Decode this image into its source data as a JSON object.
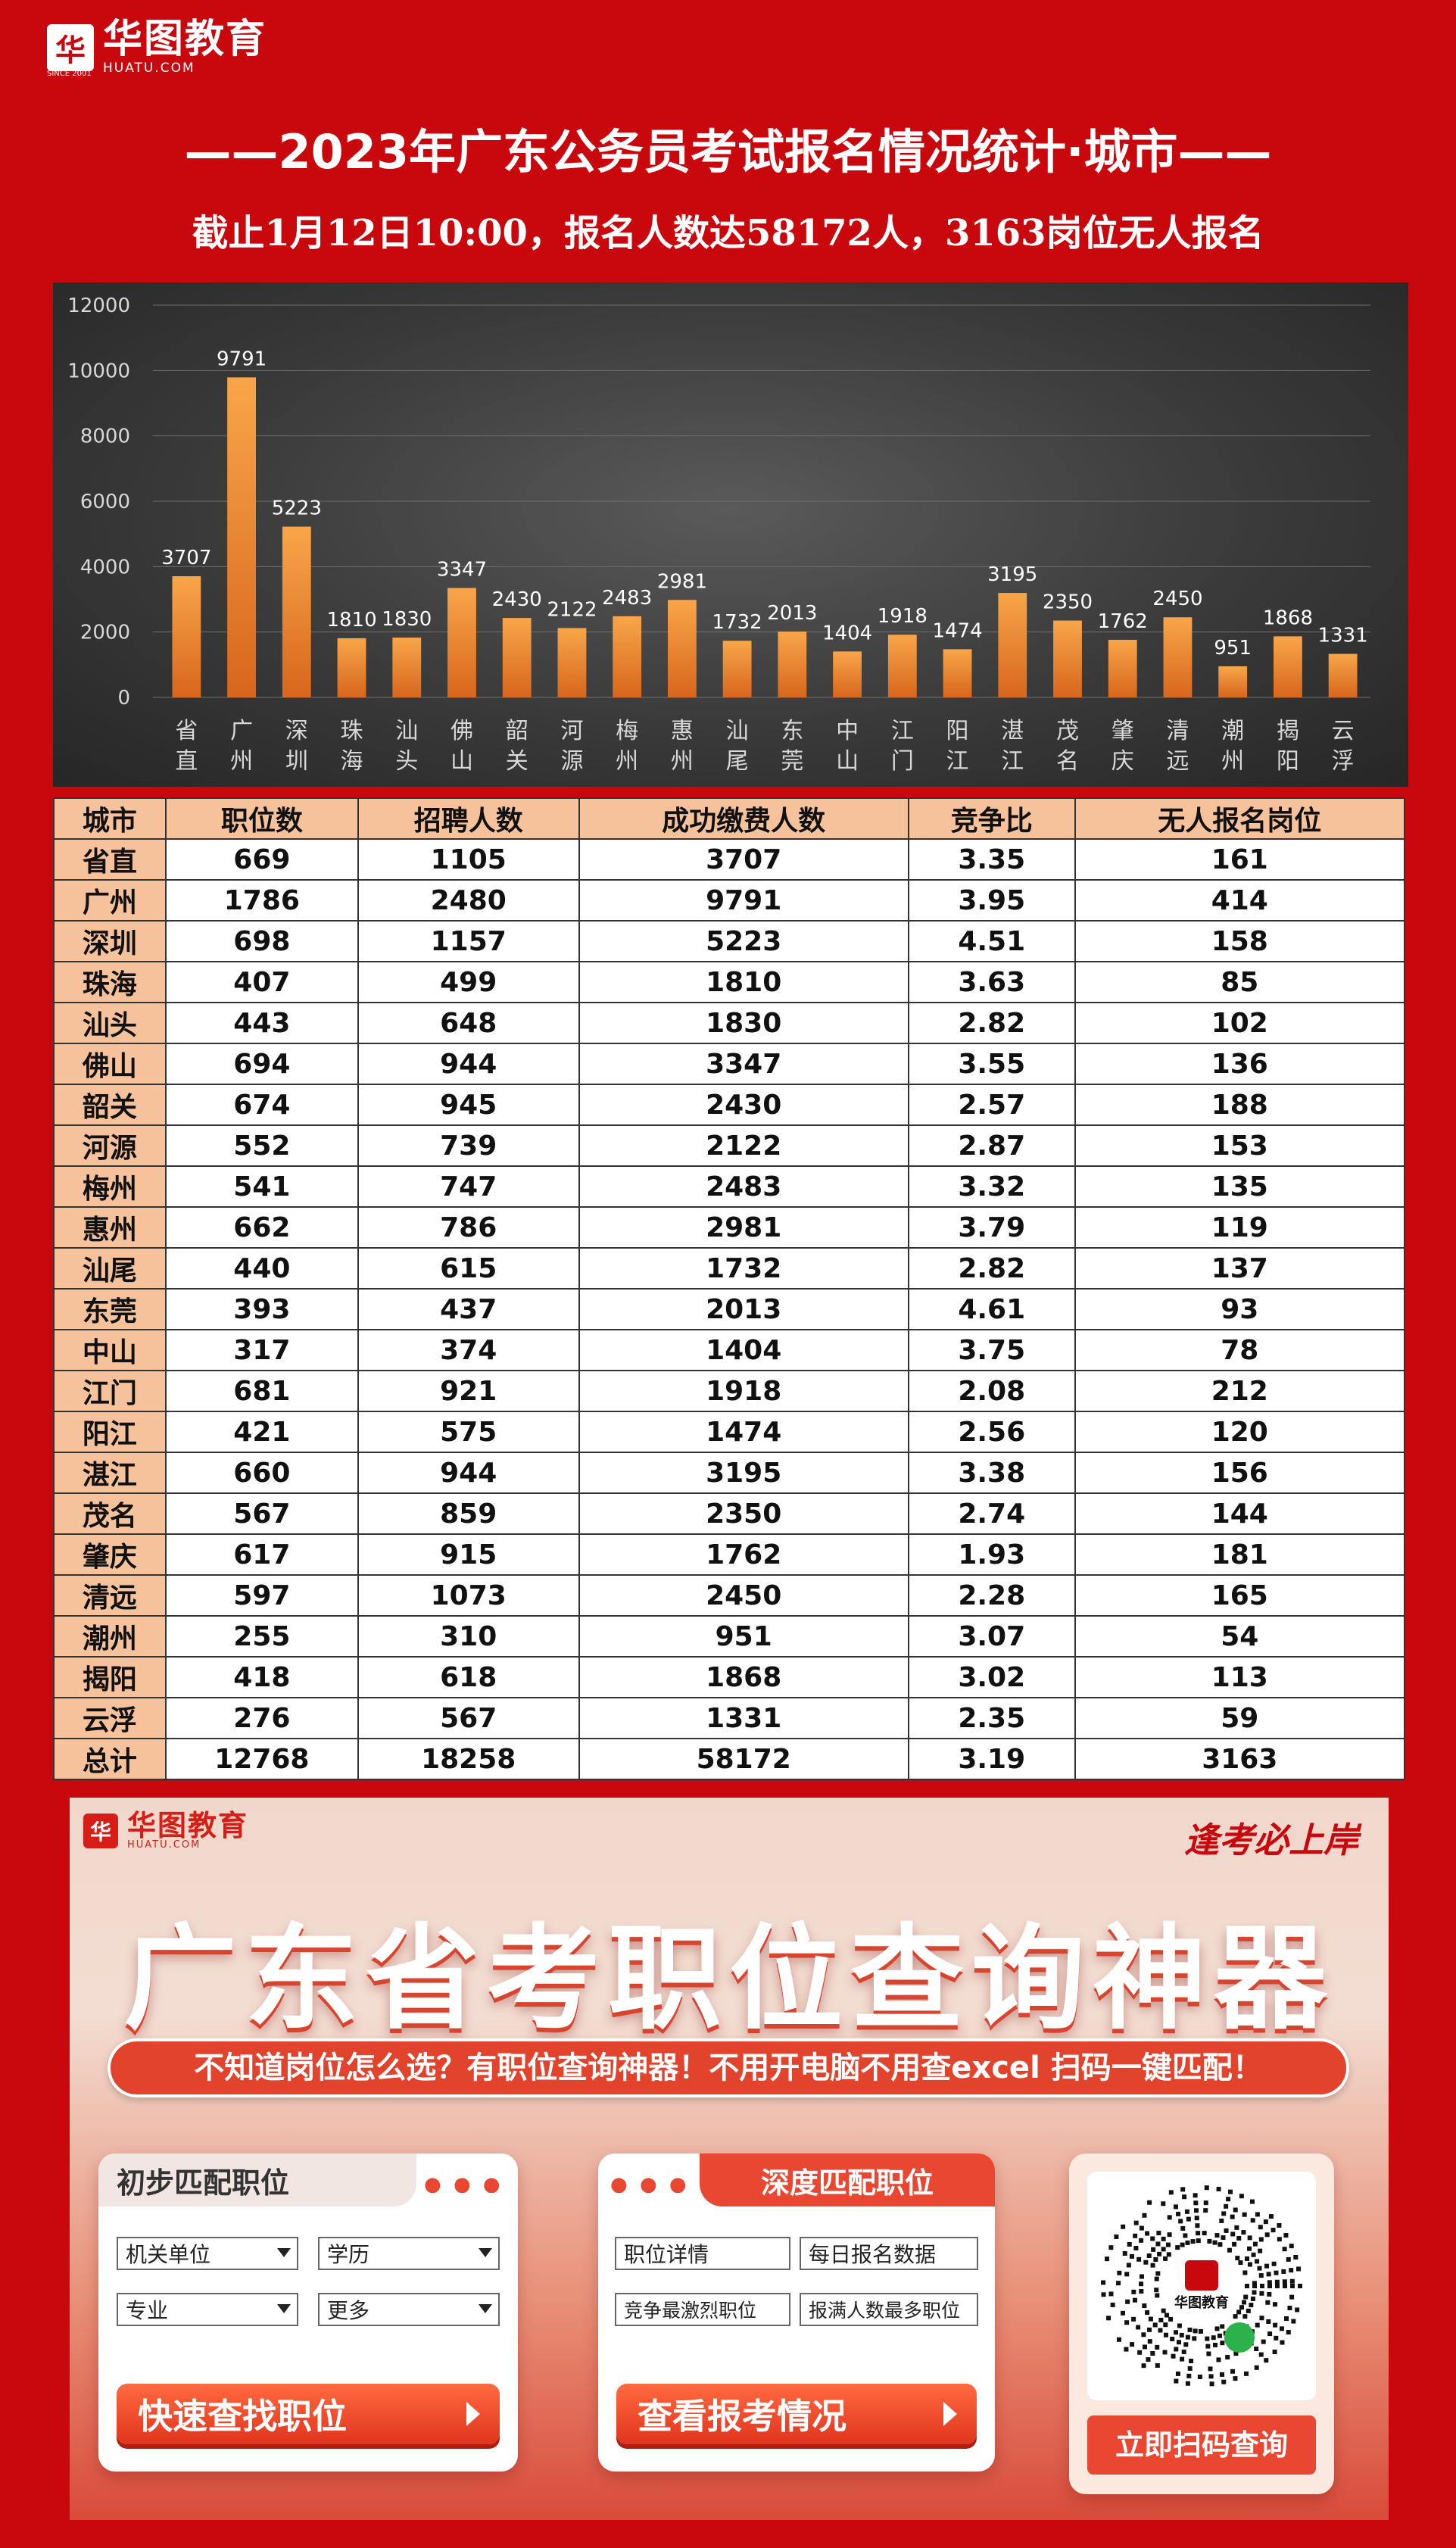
{
  "brand": {
    "mark": "华",
    "name_cn": "华图教育",
    "name_en": "HUATU.COM",
    "since": "SINCE 2001"
  },
  "header": {
    "title": "——2023年广东公务员考试报名情况统计·城市——",
    "subtitle": "截止1月12日10:00，报名人数达58172人，3163岗位无人报名"
  },
  "chart_data": {
    "type": "bar",
    "categories": [
      "省直",
      "广州",
      "深圳",
      "珠海",
      "汕头",
      "佛山",
      "韶关",
      "河源",
      "梅州",
      "惠州",
      "汕尾",
      "东莞",
      "中山",
      "江门",
      "阳江",
      "湛江",
      "茂名",
      "肇庆",
      "清远",
      "潮州",
      "揭阳",
      "云浮"
    ],
    "values": [
      3707,
      9791,
      5223,
      1810,
      1830,
      3347,
      2430,
      2122,
      2483,
      2981,
      1732,
      2013,
      1404,
      1918,
      1474,
      3195,
      2350,
      1762,
      2450,
      951,
      1868,
      1331
    ],
    "ylim": [
      0,
      12000
    ],
    "yticks": [
      0,
      2000,
      4000,
      6000,
      8000,
      10000,
      12000
    ],
    "grid": true,
    "colors": {
      "bar_top": "#f8a64a",
      "bar_bottom": "#d8661c",
      "label": "#ffffff",
      "grid": "#707070"
    }
  },
  "table": {
    "headers": [
      "城市",
      "职位数",
      "招聘人数",
      "成功缴费人数",
      "竞争比",
      "无人报名岗位"
    ],
    "rows": [
      [
        "省直",
        "669",
        "1105",
        "3707",
        "3.35",
        "161"
      ],
      [
        "广州",
        "1786",
        "2480",
        "9791",
        "3.95",
        "414"
      ],
      [
        "深圳",
        "698",
        "1157",
        "5223",
        "4.51",
        "158"
      ],
      [
        "珠海",
        "407",
        "499",
        "1810",
        "3.63",
        "85"
      ],
      [
        "汕头",
        "443",
        "648",
        "1830",
        "2.82",
        "102"
      ],
      [
        "佛山",
        "694",
        "944",
        "3347",
        "3.55",
        "136"
      ],
      [
        "韶关",
        "674",
        "945",
        "2430",
        "2.57",
        "188"
      ],
      [
        "河源",
        "552",
        "739",
        "2122",
        "2.87",
        "153"
      ],
      [
        "梅州",
        "541",
        "747",
        "2483",
        "3.32",
        "135"
      ],
      [
        "惠州",
        "662",
        "786",
        "2981",
        "3.79",
        "119"
      ],
      [
        "汕尾",
        "440",
        "615",
        "1732",
        "2.82",
        "137"
      ],
      [
        "东莞",
        "393",
        "437",
        "2013",
        "4.61",
        "93"
      ],
      [
        "中山",
        "317",
        "374",
        "1404",
        "3.75",
        "78"
      ],
      [
        "江门",
        "681",
        "921",
        "1918",
        "2.08",
        "212"
      ],
      [
        "阳江",
        "421",
        "575",
        "1474",
        "2.56",
        "120"
      ],
      [
        "湛江",
        "660",
        "944",
        "3195",
        "3.38",
        "156"
      ],
      [
        "茂名",
        "567",
        "859",
        "2350",
        "2.74",
        "144"
      ],
      [
        "肇庆",
        "617",
        "915",
        "1762",
        "1.93",
        "181"
      ],
      [
        "清远",
        "597",
        "1073",
        "2450",
        "2.28",
        "165"
      ],
      [
        "潮州",
        "255",
        "310",
        "951",
        "3.07",
        "54"
      ],
      [
        "揭阳",
        "418",
        "618",
        "1868",
        "3.02",
        "113"
      ],
      [
        "云浮",
        "276",
        "567",
        "1331",
        "2.35",
        "59"
      ]
    ],
    "total": [
      "总计",
      "12768",
      "18258",
      "58172",
      "3.19",
      "3163"
    ]
  },
  "banner": {
    "slogan": "逢考必上岸",
    "title": "广东省考职位查询神器",
    "tagline": "不知道岗位怎么选？有职位查询神器！不用开电脑不用查excel 扫码一键匹配！",
    "card1": {
      "heading": "初步匹配职位",
      "fields": [
        "机关单位",
        "学历",
        "专业",
        "更多"
      ],
      "button": "快速查找职位"
    },
    "card2": {
      "heading": "深度匹配职位",
      "fields": [
        "职位详情",
        "每日报名数据",
        "竞争最激烈职位",
        "报满人数最多职位"
      ],
      "button": "查看报考情况"
    },
    "qr": {
      "center_label": "华图教育",
      "button": "立即扫码查询"
    }
  }
}
